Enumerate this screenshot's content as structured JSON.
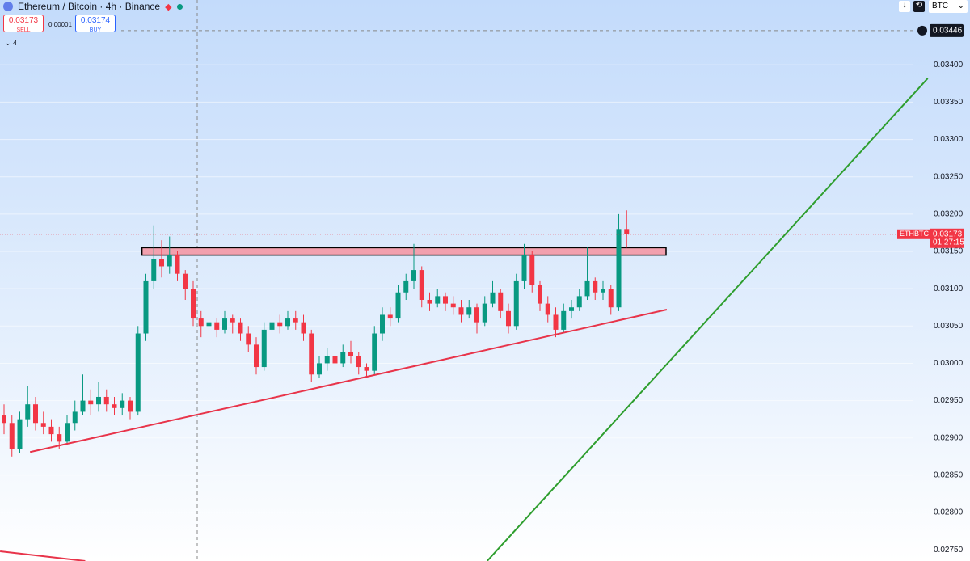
{
  "header": {
    "title": "Ethereum / Bitcoin · 4h · Binance",
    "sell_price": "0.03173",
    "sell": "SELL",
    "spread": "0.00001",
    "buy_price": "0.03174",
    "buy": "BUY",
    "indicators": "4",
    "currency": "BTC"
  },
  "chart_data": {
    "type": "candlestick",
    "symbol": "ETHBTC",
    "up_color": "#089981",
    "down_color": "#f23645",
    "ylim": [
      0.02735,
      0.03487
    ],
    "yticks": [
      {
        "value": 0.0275,
        "label": "0.02750"
      },
      {
        "value": 0.028,
        "label": "0.02800"
      },
      {
        "value": 0.0285,
        "label": "0.02850"
      },
      {
        "value": 0.029,
        "label": "0.02900"
      },
      {
        "value": 0.0295,
        "label": "0.02950"
      },
      {
        "value": 0.03,
        "label": "0.03000"
      },
      {
        "value": 0.0305,
        "label": "0.03050"
      },
      {
        "value": 0.031,
        "label": "0.03100"
      },
      {
        "value": 0.0315,
        "label": "0.03150"
      },
      {
        "value": 0.032,
        "label": "0.03200"
      },
      {
        "value": 0.0325,
        "label": "0.03250"
      },
      {
        "value": 0.033,
        "label": "0.03300"
      },
      {
        "value": 0.0335,
        "label": "0.03350"
      },
      {
        "value": 0.034,
        "label": "0.03400"
      }
    ],
    "grid": true,
    "last_price": {
      "value": 0.03173,
      "label": "0.03173"
    },
    "countdown": "01:27:15",
    "crosshair_price": {
      "value": 0.03446,
      "label": "0.03446"
    },
    "ohlc": [
      [
        0.0293,
        0.02945,
        0.02905,
        0.0292
      ],
      [
        0.0292,
        0.0293,
        0.02875,
        0.02885
      ],
      [
        0.02885,
        0.02935,
        0.0288,
        0.02925
      ],
      [
        0.02925,
        0.0297,
        0.02915,
        0.02945
      ],
      [
        0.02945,
        0.02955,
        0.0291,
        0.0292
      ],
      [
        0.0292,
        0.02935,
        0.02905,
        0.02915
      ],
      [
        0.02915,
        0.02925,
        0.02895,
        0.02905
      ],
      [
        0.02905,
        0.02915,
        0.02885,
        0.02895
      ],
      [
        0.02895,
        0.0293,
        0.0289,
        0.0292
      ],
      [
        0.0292,
        0.0295,
        0.0291,
        0.02935
      ],
      [
        0.02935,
        0.02985,
        0.0293,
        0.0295
      ],
      [
        0.0295,
        0.02965,
        0.0293,
        0.02945
      ],
      [
        0.02945,
        0.02975,
        0.02935,
        0.02955
      ],
      [
        0.02955,
        0.02965,
        0.02935,
        0.02945
      ],
      [
        0.02945,
        0.02955,
        0.0293,
        0.0294
      ],
      [
        0.0294,
        0.0296,
        0.0293,
        0.0295
      ],
      [
        0.0295,
        0.02955,
        0.02925,
        0.02935
      ],
      [
        0.02935,
        0.0305,
        0.0293,
        0.0304
      ],
      [
        0.0304,
        0.0312,
        0.0303,
        0.0311
      ],
      [
        0.0311,
        0.03185,
        0.031,
        0.0314
      ],
      [
        0.0314,
        0.03165,
        0.03115,
        0.0313
      ],
      [
        0.0313,
        0.0317,
        0.0312,
        0.03145
      ],
      [
        0.03145,
        0.0315,
        0.0311,
        0.0312
      ],
      [
        0.0312,
        0.03125,
        0.03085,
        0.031
      ],
      [
        0.031,
        0.0311,
        0.0305,
        0.0306
      ],
      [
        0.0306,
        0.0307,
        0.03035,
        0.0305
      ],
      [
        0.0305,
        0.03065,
        0.0304,
        0.03055
      ],
      [
        0.03055,
        0.0306,
        0.03035,
        0.03045
      ],
      [
        0.03045,
        0.0307,
        0.0304,
        0.0306
      ],
      [
        0.0306,
        0.03065,
        0.0304,
        0.03055
      ],
      [
        0.03055,
        0.0306,
        0.0303,
        0.0304
      ],
      [
        0.0304,
        0.0305,
        0.03015,
        0.03025
      ],
      [
        0.03025,
        0.03035,
        0.02985,
        0.02995
      ],
      [
        0.02995,
        0.03055,
        0.0299,
        0.03045
      ],
      [
        0.03045,
        0.03065,
        0.03035,
        0.03055
      ],
      [
        0.03055,
        0.03065,
        0.0304,
        0.0305
      ],
      [
        0.0305,
        0.0307,
        0.03045,
        0.0306
      ],
      [
        0.0306,
        0.0307,
        0.03045,
        0.03055
      ],
      [
        0.03055,
        0.03065,
        0.0303,
        0.0304
      ],
      [
        0.0304,
        0.03045,
        0.02975,
        0.02985
      ],
      [
        0.02985,
        0.0301,
        0.0298,
        0.03
      ],
      [
        0.03,
        0.0302,
        0.0299,
        0.0301
      ],
      [
        0.0301,
        0.0302,
        0.0299,
        0.03
      ],
      [
        0.03,
        0.03025,
        0.02995,
        0.03015
      ],
      [
        0.03015,
        0.0303,
        0.03,
        0.0301
      ],
      [
        0.0301,
        0.03015,
        0.02985,
        0.02995
      ],
      [
        0.02995,
        0.03,
        0.0298,
        0.0299
      ],
      [
        0.0299,
        0.0305,
        0.02985,
        0.0304
      ],
      [
        0.0304,
        0.03075,
        0.0303,
        0.03065
      ],
      [
        0.03065,
        0.03075,
        0.0305,
        0.0306
      ],
      [
        0.0306,
        0.03105,
        0.03055,
        0.03095
      ],
      [
        0.03095,
        0.0312,
        0.03085,
        0.0311
      ],
      [
        0.0311,
        0.0316,
        0.031,
        0.03125
      ],
      [
        0.03125,
        0.0313,
        0.03075,
        0.03085
      ],
      [
        0.03085,
        0.03095,
        0.0307,
        0.0308
      ],
      [
        0.0308,
        0.031,
        0.03075,
        0.0309
      ],
      [
        0.0309,
        0.03095,
        0.0307,
        0.0308
      ],
      [
        0.0308,
        0.0309,
        0.03065,
        0.03075
      ],
      [
        0.03075,
        0.03085,
        0.03055,
        0.03065
      ],
      [
        0.03065,
        0.03085,
        0.0306,
        0.03075
      ],
      [
        0.03075,
        0.0308,
        0.0304,
        0.03055
      ],
      [
        0.03055,
        0.0309,
        0.0305,
        0.0308
      ],
      [
        0.0308,
        0.0311,
        0.03075,
        0.03095
      ],
      [
        0.03095,
        0.031,
        0.0306,
        0.0307
      ],
      [
        0.0307,
        0.0308,
        0.0304,
        0.0305
      ],
      [
        0.0305,
        0.0312,
        0.03045,
        0.0311
      ],
      [
        0.0311,
        0.0316,
        0.031,
        0.03145
      ],
      [
        0.03145,
        0.0315,
        0.03095,
        0.03105
      ],
      [
        0.03105,
        0.0311,
        0.0307,
        0.0308
      ],
      [
        0.0308,
        0.0309,
        0.03055,
        0.03065
      ],
      [
        0.03065,
        0.03075,
        0.03035,
        0.03045
      ],
      [
        0.03045,
        0.0308,
        0.0304,
        0.0307
      ],
      [
        0.0307,
        0.03085,
        0.0306,
        0.03075
      ],
      [
        0.03075,
        0.031,
        0.0307,
        0.0309
      ],
      [
        0.0309,
        0.03155,
        0.03085,
        0.0311
      ],
      [
        0.0311,
        0.03115,
        0.03085,
        0.03095
      ],
      [
        0.03095,
        0.0311,
        0.03085,
        0.031
      ],
      [
        0.031,
        0.03105,
        0.03065,
        0.03075
      ],
      [
        0.03075,
        0.032,
        0.0307,
        0.0318
      ],
      [
        0.0318,
        0.03205,
        0.03155,
        0.03173
      ]
    ],
    "zone": {
      "x": [
        17.5,
        84
      ],
      "y": [
        0.03145,
        0.03155
      ],
      "color": "#f2a0ae"
    },
    "trendlines": [
      {
        "x": [
          3.3,
          84.1
        ],
        "y": [
          0.02881,
          0.03072
        ],
        "color": "#e8344a"
      },
      {
        "x": [
          61.3,
          117.2
        ],
        "y": [
          0.02735,
          0.03382
        ],
        "color": "#2e9e2e"
      },
      {
        "x": [
          -0.5,
          10.3
        ],
        "y": [
          0.02748,
          0.02735
        ],
        "color": "#e8344a"
      }
    ]
  }
}
